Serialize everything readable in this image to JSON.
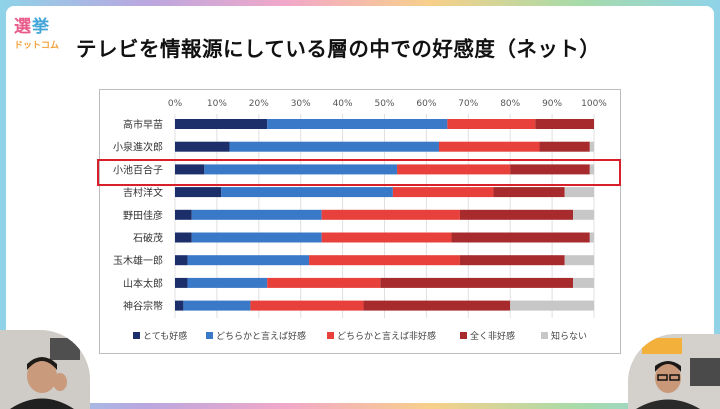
{
  "logo": {
    "line1_a": "選",
    "line1_b": "挙",
    "line2": "ドットコム"
  },
  "title": "テレビを情報源にしている層の中での好感度（ネット）",
  "colors": {
    "very_favorable": "#1c2f6a",
    "somewhat_favorable": "#3a78c8",
    "somewhat_unfavorable": "#e8403a",
    "very_unfavorable": "#a72b2c",
    "dont_know": "#c7c7c7",
    "highlight": "#d8202a"
  },
  "chart_data": {
    "type": "bar",
    "orientation": "horizontal-stacked-100",
    "title": "テレビを情報源にしている層の中での好感度（ネット）",
    "xlim": [
      0,
      100
    ],
    "xticks": [
      "0%",
      "10%",
      "20%",
      "30%",
      "40%",
      "50%",
      "60%",
      "70%",
      "80%",
      "90%",
      "100%"
    ],
    "categories": [
      "高市早苗",
      "小泉進次郎",
      "小池百合子",
      "吉村洋文",
      "野田佳彦",
      "石破茂",
      "玉木雄一郎",
      "山本太郎",
      "神谷宗幣"
    ],
    "highlighted_category": "小池百合子",
    "series": [
      {
        "name": "とても好感",
        "color_key": "very_favorable",
        "values": [
          22,
          13,
          7,
          11,
          4,
          4,
          3,
          3,
          2
        ]
      },
      {
        "name": "どちらかと言えば好感",
        "color_key": "somewhat_favorable",
        "values": [
          43,
          50,
          46,
          41,
          31,
          31,
          29,
          19,
          16
        ]
      },
      {
        "name": "どちらかと言えば非好感",
        "color_key": "somewhat_unfavorable",
        "values": [
          21,
          24,
          27,
          24,
          33,
          31,
          36,
          27,
          27
        ]
      },
      {
        "name": "全く非好感",
        "color_key": "very_unfavorable",
        "values": [
          14,
          12,
          19,
          17,
          27,
          33,
          25,
          46,
          35
        ]
      },
      {
        "name": "知らない",
        "color_key": "dont_know",
        "values": [
          0,
          1,
          1,
          7,
          5,
          1,
          7,
          5,
          20
        ]
      }
    ],
    "legend_position": "bottom"
  }
}
